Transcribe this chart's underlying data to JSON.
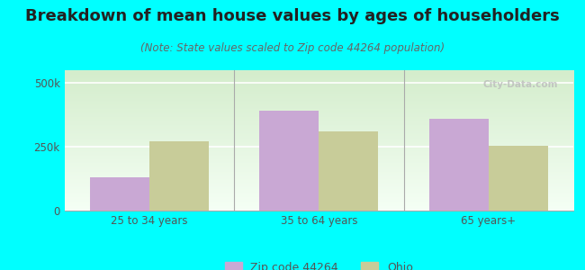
{
  "title": "Breakdown of mean house values by ages of householders",
  "subtitle": "(Note: State values scaled to Zip code 44264 population)",
  "categories": [
    "25 to 34 years",
    "35 to 64 years",
    "65 years+"
  ],
  "zip_values": [
    130000,
    390000,
    360000
  ],
  "ohio_values": [
    270000,
    310000,
    255000
  ],
  "zip_color": "#c9a8d4",
  "ohio_color": "#c8cc99",
  "background_color": "#00ffff",
  "ylim": [
    0,
    550000
  ],
  "yticks": [
    0,
    250000,
    500000
  ],
  "ytick_labels": [
    "0",
    "250k",
    "500k"
  ],
  "legend_labels": [
    "Zip code 44264",
    "Ohio"
  ],
  "bar_width": 0.35,
  "title_fontsize": 13,
  "subtitle_fontsize": 8.5,
  "axis_label_fontsize": 8.5,
  "legend_fontsize": 9,
  "watermark": "City-Data.com"
}
